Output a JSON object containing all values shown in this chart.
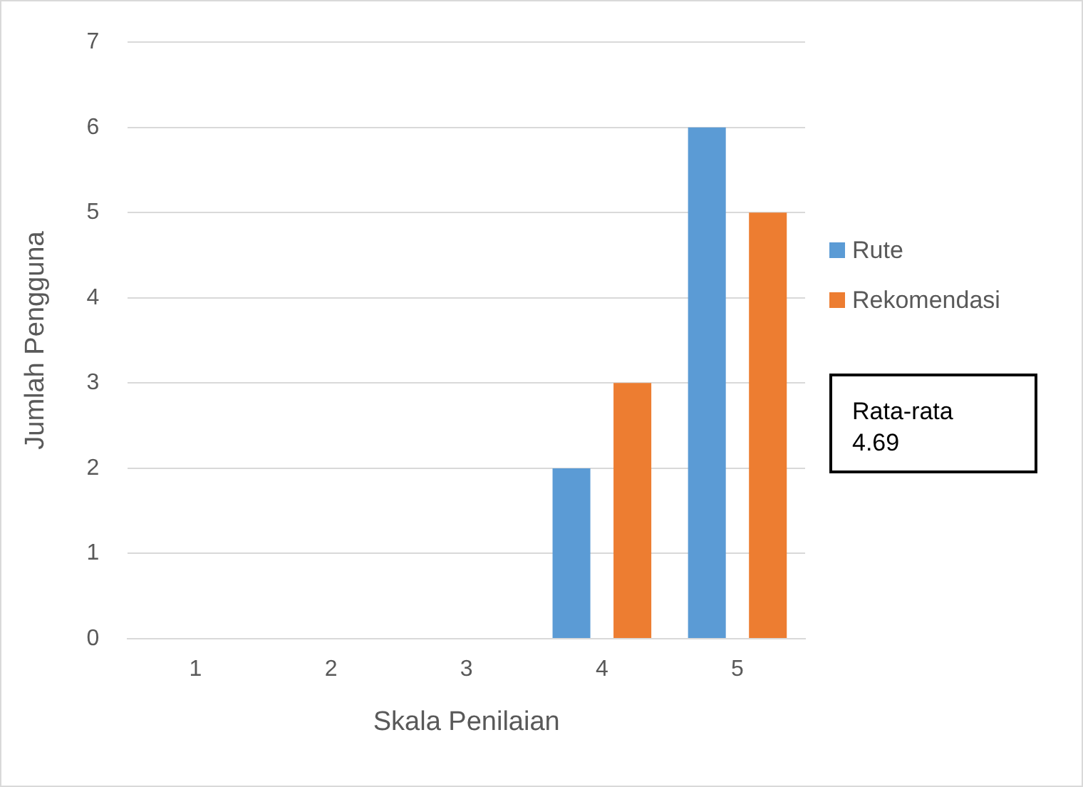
{
  "chart_data": {
    "type": "bar",
    "xlabel": "Skala Penilaian",
    "ylabel": "Jumlah Pengguna",
    "categories": [
      "1",
      "2",
      "3",
      "4",
      "5"
    ],
    "series": [
      {
        "name": "Rute",
        "color": "#5b9bd5",
        "values": [
          0,
          0,
          0,
          2,
          6
        ]
      },
      {
        "name": "Rekomendasi",
        "color": "#ed7d31",
        "values": [
          0,
          0,
          0,
          3,
          5
        ]
      }
    ],
    "ylim": [
      0,
      7
    ],
    "yticks": [
      0,
      1,
      2,
      3,
      4,
      5,
      6,
      7
    ],
    "grid": "y",
    "legend": "right",
    "annotations": [
      "Rata-rata\n4.69"
    ]
  }
}
